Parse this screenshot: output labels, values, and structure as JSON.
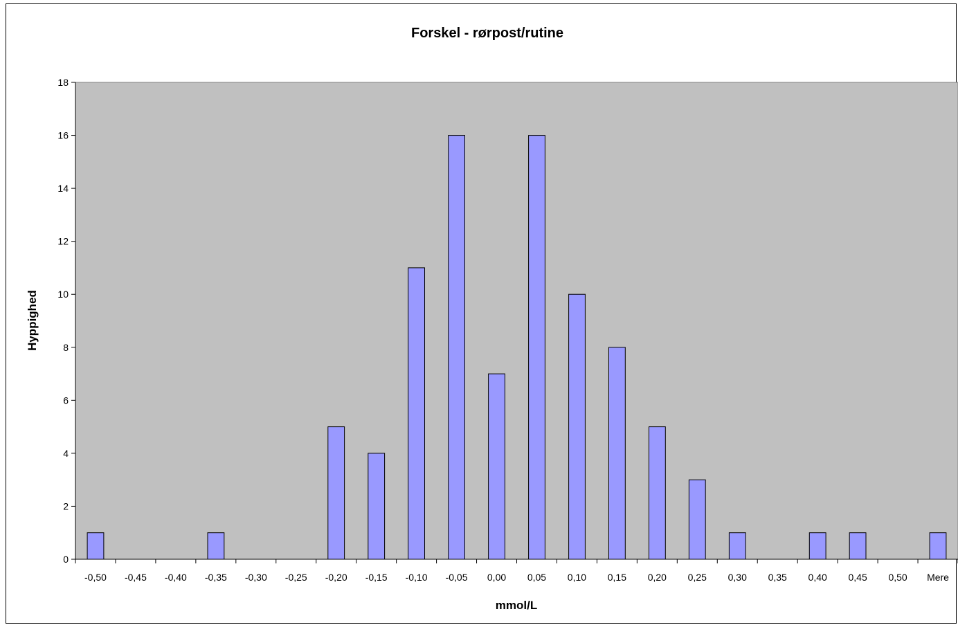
{
  "chart_data": {
    "type": "bar",
    "title": "Forskel - rørpost/rutine",
    "xlabel": "mmol/L",
    "ylabel": "Hyppighed",
    "categories": [
      "-0,50",
      "-0,45",
      "-0,40",
      "-0,35",
      "-0,30",
      "-0,25",
      "-0,20",
      "-0,15",
      "-0,10",
      "-0,05",
      "0,00",
      "0,05",
      "0,10",
      "0,15",
      "0,20",
      "0,25",
      "0,30",
      "0,35",
      "0,40",
      "0,45",
      "0,50",
      "Mere"
    ],
    "values": [
      1,
      0,
      0,
      1,
      0,
      0,
      5,
      4,
      11,
      16,
      7,
      16,
      10,
      8,
      5,
      3,
      1,
      0,
      1,
      1,
      0,
      1
    ],
    "ylim": [
      0,
      18
    ],
    "yticks": [
      0,
      2,
      4,
      6,
      8,
      10,
      12,
      14,
      16,
      18
    ],
    "grid": false,
    "legend": "none",
    "colors": {
      "bar_fill": "#9999ff",
      "bar_stroke": "#000000",
      "plot_background": "#c0c0c0",
      "page_background": "#ffffff"
    }
  }
}
